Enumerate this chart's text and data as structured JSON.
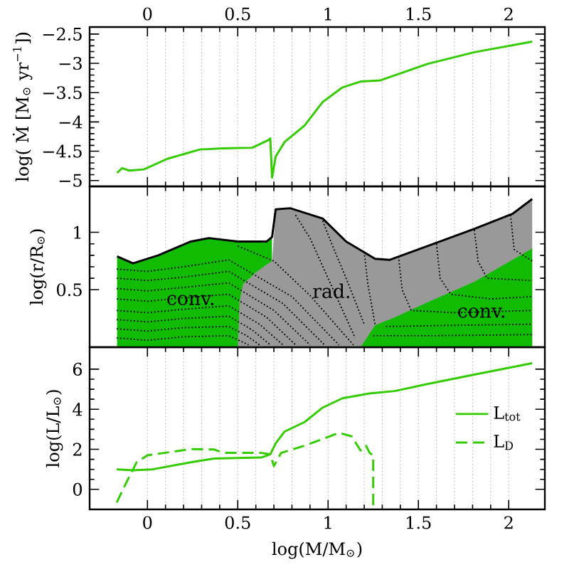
{
  "chart_data": [
    {
      "type": "line",
      "ylabel": "log( Ṁ [M$_{⊙}$ yr$^{−1}$])",
      "xlim": [
        -0.32,
        2.2
      ],
      "xticks": [
        0,
        0.5,
        1,
        1.5,
        2
      ],
      "x2lim": [
        -0.32,
        2.2
      ],
      "x2ticks": [
        0,
        0.5,
        1,
        1.5,
        2
      ],
      "tick_labels": "y",
      "ylim": [
        -5.1,
        -2.38
      ],
      "yticks": [
        {
          "value": -5,
          "label": "−5"
        },
        {
          "value": -4.5,
          "label": "−4.5"
        },
        {
          "value": -4,
          "label": "−4"
        },
        {
          "value": -3.5,
          "label": "−3.5"
        },
        {
          "value": -3,
          "label": "−3"
        },
        {
          "value": -2.5,
          "label": "−2.5"
        }
      ],
      "grid": "x",
      "series": [
        {
          "color": "#33cc00",
          "x": [
            -0.168,
            -0.14,
            -0.1,
            -0.02,
            0.11,
            0.29,
            0.42,
            0.58,
            0.67,
            0.68,
            0.69,
            0.71,
            0.76,
            0.87,
            0.97,
            1.08,
            1.18,
            1.29,
            1.55,
            1.81,
            2.13
          ],
          "values": [
            -4.87,
            -4.79,
            -4.83,
            -4.81,
            -4.63,
            -4.47,
            -4.45,
            -4.44,
            -4.31,
            -4.28,
            -4.95,
            -4.59,
            -4.34,
            -4.06,
            -3.66,
            -3.41,
            -3.31,
            -3.29,
            -3.01,
            -2.81,
            -2.63
          ]
        }
      ]
    },
    {
      "type": "area",
      "ylabel": "log(r/R$_{⊙}$)",
      "xlim": [
        -0.32,
        2.2
      ],
      "xticks": [
        0,
        0.5,
        1,
        1.5,
        2
      ],
      "tick_labels": "y",
      "ylim": [
        0,
        1.4
      ],
      "yticks": [
        0.5,
        1
      ],
      "grid": "x",
      "annotations": [
        {
          "text": "conv.",
          "x": 0.24,
          "y": 0.41
        },
        {
          "text": "rad.",
          "x": 1.02,
          "y": 0.49
        },
        {
          "text": "conv.",
          "x": 1.85,
          "y": 0.3
        }
      ],
      "series": [
        {
          "type": "area",
          "color": "#11bb00",
          "x": [
            -0.168,
            -0.08,
            0.06,
            0.24,
            0.34,
            0.5,
            0.66,
            0.69
          ],
          "values": [
            0.79,
            0.73,
            0.8,
            0.92,
            0.95,
            0.92,
            0.92,
            0.96
          ]
        },
        {
          "type": "area",
          "color": "#999999",
          "x": [
            0.5,
            0.51,
            0.53,
            0.6,
            0.66,
            0.69,
            0.7,
            0.71,
            0.79,
            0.97,
            1.1,
            1.26,
            1.34,
            1.55,
            1.81,
            2.02,
            2.13
          ],
          "values": [
            0,
            0.4,
            0.55,
            0.65,
            0.72,
            0.75,
            0.96,
            1.2,
            1.21,
            1.12,
            0.92,
            0.77,
            0.76,
            0.88,
            1.03,
            1.16,
            1.29
          ]
        },
        {
          "type": "area",
          "color": "#11bb00",
          "x": [
            1.18,
            1.26,
            1.37,
            1.55,
            1.81,
            2.13
          ],
          "values": [
            0,
            0.19,
            0.26,
            0.39,
            0.57,
            0.86
          ]
        },
        {
          "type": "line",
          "color": "#000000",
          "line_style": "dotted",
          "x": [
            -0.17,
            0.0,
            0.2,
            0.45,
            0.52,
            0.56
          ],
          "values": [
            0.08,
            0.06,
            0.09,
            0.1,
            0.05,
            0.02
          ]
        },
        {
          "type": "line",
          "color": "#000000",
          "line_style": "dotted",
          "x": [
            -0.17,
            0.0,
            0.2,
            0.45,
            0.55,
            0.62
          ],
          "values": [
            0.16,
            0.14,
            0.17,
            0.18,
            0.1,
            0.02
          ]
        },
        {
          "type": "line",
          "color": "#000000",
          "line_style": "dotted",
          "x": [
            -0.17,
            0.0,
            0.2,
            0.45,
            0.58,
            0.68
          ],
          "values": [
            0.24,
            0.22,
            0.25,
            0.27,
            0.15,
            0.02
          ]
        },
        {
          "type": "line",
          "color": "#000000",
          "line_style": "dotted",
          "x": [
            -0.17,
            0.0,
            0.2,
            0.45,
            0.62,
            0.75
          ],
          "values": [
            0.32,
            0.3,
            0.33,
            0.36,
            0.2,
            0.02
          ]
        },
        {
          "type": "line",
          "color": "#000000",
          "line_style": "dotted",
          "x": [
            -0.17,
            0.0,
            0.2,
            0.45,
            0.66,
            0.82
          ],
          "values": [
            0.42,
            0.4,
            0.43,
            0.46,
            0.26,
            0.02
          ]
        },
        {
          "type": "line",
          "color": "#000000",
          "line_style": "dotted",
          "x": [
            -0.17,
            0.0,
            0.2,
            0.45,
            0.7,
            0.9
          ],
          "values": [
            0.51,
            0.49,
            0.52,
            0.56,
            0.32,
            0.02
          ]
        },
        {
          "type": "line",
          "color": "#000000",
          "line_style": "dotted",
          "x": [
            -0.17,
            0.0,
            0.2,
            0.45,
            0.75,
            0.98
          ],
          "values": [
            0.6,
            0.58,
            0.61,
            0.66,
            0.38,
            0.02
          ]
        },
        {
          "type": "line",
          "color": "#000000",
          "line_style": "dotted",
          "x": [
            -0.17,
            0.0,
            0.2,
            0.45,
            0.8,
            1.06
          ],
          "values": [
            0.68,
            0.66,
            0.7,
            0.76,
            0.44,
            0.02
          ]
        },
        {
          "type": "line",
          "color": "#000000",
          "line_style": "dotted",
          "x": [
            0.5,
            0.7,
            0.9,
            1.14
          ],
          "values": [
            0.88,
            0.75,
            0.45,
            0.02
          ]
        },
        {
          "type": "line",
          "color": "#000000",
          "line_style": "dotted",
          "x": [
            0.82,
            0.9,
            1.0,
            1.15
          ],
          "values": [
            1.15,
            0.95,
            0.6,
            0.08
          ]
        },
        {
          "type": "line",
          "color": "#000000",
          "line_style": "dotted",
          "x": [
            0.97,
            1.02,
            1.1,
            1.2
          ],
          "values": [
            1.1,
            0.9,
            0.6,
            0.2
          ]
        },
        {
          "type": "line",
          "color": "#000000",
          "line_style": "dotted",
          "x": [
            1.2,
            1.22,
            1.26
          ],
          "values": [
            0.83,
            0.55,
            0.2
          ]
        },
        {
          "type": "line",
          "color": "#000000",
          "line_style": "dotted",
          "x": [
            1.39,
            1.41,
            1.46,
            1.7,
            2.13
          ],
          "values": [
            0.79,
            0.5,
            0.32,
            0.3,
            0.32
          ]
        },
        {
          "type": "line",
          "color": "#000000",
          "line_style": "dotted",
          "x": [
            1.6,
            1.62,
            1.68,
            1.9,
            2.13
          ],
          "values": [
            0.9,
            0.6,
            0.46,
            0.42,
            0.44
          ]
        },
        {
          "type": "line",
          "color": "#000000",
          "line_style": "dotted",
          "x": [
            1.81,
            1.83,
            1.88,
            2.13
          ],
          "values": [
            1.02,
            0.75,
            0.6,
            0.58
          ]
        },
        {
          "type": "line",
          "color": "#000000",
          "line_style": "dotted",
          "x": [
            2.01,
            2.03,
            2.13
          ],
          "values": [
            1.15,
            0.85,
            0.75
          ]
        },
        {
          "type": "line",
          "color": "#000000",
          "line_style": "dotted",
          "x": [
            1.25,
            1.6,
            2.13
          ],
          "values": [
            0.1,
            0.1,
            0.11
          ]
        },
        {
          "type": "line",
          "color": "#000000",
          "line_style": "dotted",
          "x": [
            1.32,
            1.7,
            2.13
          ],
          "values": [
            0.18,
            0.19,
            0.2
          ]
        },
        {
          "type": "line",
          "color": "#000000",
          "x": [
            -0.168,
            -0.08,
            0.06,
            0.24,
            0.34,
            0.5,
            0.66,
            0.69,
            0.71,
            0.79,
            0.97,
            1.1,
            1.26,
            1.34,
            1.55,
            1.81,
            2.02,
            2.13
          ],
          "values": [
            0.79,
            0.73,
            0.8,
            0.92,
            0.95,
            0.92,
            0.92,
            0.96,
            1.2,
            1.21,
            1.12,
            0.92,
            0.77,
            0.76,
            0.88,
            1.03,
            1.16,
            1.29
          ]
        }
      ]
    },
    {
      "type": "line",
      "xlabel": "log(M/M$_{⊙}$)",
      "ylabel": "log(L/L$_{⊙}$)",
      "xlim": [
        -0.32,
        2.2
      ],
      "xticks": [
        0,
        0.5,
        1,
        1.5,
        2
      ],
      "ylim": [
        -1,
        7.1
      ],
      "yticks": [
        0,
        2,
        4,
        6
      ],
      "grid": "x",
      "legend": "right",
      "series": [
        {
          "name": "L$_{tot}$",
          "color": "#33cc00",
          "line_style": "solid",
          "x": [
            -0.17,
            -0.08,
            0.03,
            0.24,
            0.37,
            0.63,
            0.68,
            0.71,
            0.76,
            0.87,
            0.97,
            1.08,
            1.23,
            1.37,
            1.55,
            1.81,
            2.13
          ],
          "values": [
            1.0,
            0.95,
            1.0,
            1.35,
            1.54,
            1.59,
            1.75,
            2.3,
            2.89,
            3.36,
            4.08,
            4.55,
            4.79,
            4.91,
            5.26,
            5.73,
            6.3
          ]
        },
        {
          "name": "L$_{D}$",
          "color": "#33cc00",
          "line_style": "dashed",
          "x": [
            -0.17,
            -0.12,
            -0.06,
            0.0,
            0.24,
            0.37,
            0.42,
            0.63,
            0.68,
            0.7,
            0.74,
            0.87,
            1.06,
            1.13,
            1.18,
            1.21,
            1.23,
            1.25,
            1.25
          ],
          "values": [
            -0.66,
            0.28,
            1.35,
            1.7,
            2.01,
            1.99,
            1.82,
            1.82,
            1.75,
            1.16,
            1.82,
            2.18,
            2.82,
            2.65,
            1.94,
            2.18,
            1.82,
            1.7,
            -1.0
          ]
        }
      ]
    }
  ]
}
